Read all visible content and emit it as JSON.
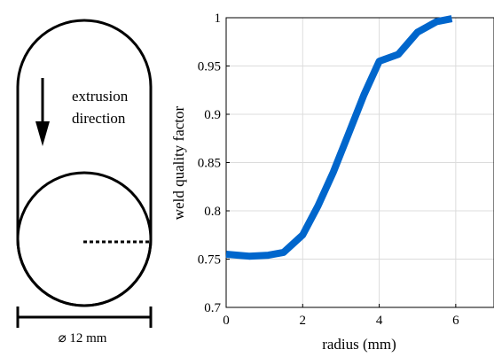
{
  "schematic": {
    "direction_text": [
      "extrusion",
      "direction"
    ],
    "dimension_text": "⌀ 12 mm"
  },
  "chart_data": {
    "type": "line",
    "title": "",
    "xlabel": "radius (mm)",
    "ylabel": "weld quality factor",
    "xlim": [
      0,
      7
    ],
    "ylim": [
      0.7,
      1.0
    ],
    "x_ticks": [
      0,
      2,
      4,
      6
    ],
    "x_tick_labels": [
      "0",
      "2",
      "4",
      "6"
    ],
    "y_ticks": [
      0.7,
      0.75,
      0.8,
      0.85,
      0.9,
      0.95,
      1.0
    ],
    "y_tick_labels": [
      "0.7",
      "0.75",
      "0.8",
      "0.85",
      "0.9",
      "0.95",
      "1"
    ],
    "grid": true,
    "series": [
      {
        "color": "#0066cc",
        "x": [
          0,
          0.6,
          1.1,
          1.5,
          2.0,
          2.4,
          2.8,
          3.2,
          3.6,
          4.0,
          4.5,
          5.0,
          5.5,
          5.9
        ],
        "y": [
          0.755,
          0.753,
          0.754,
          0.757,
          0.775,
          0.805,
          0.84,
          0.88,
          0.92,
          0.955,
          0.962,
          0.985,
          0.996,
          0.999
        ]
      }
    ]
  }
}
